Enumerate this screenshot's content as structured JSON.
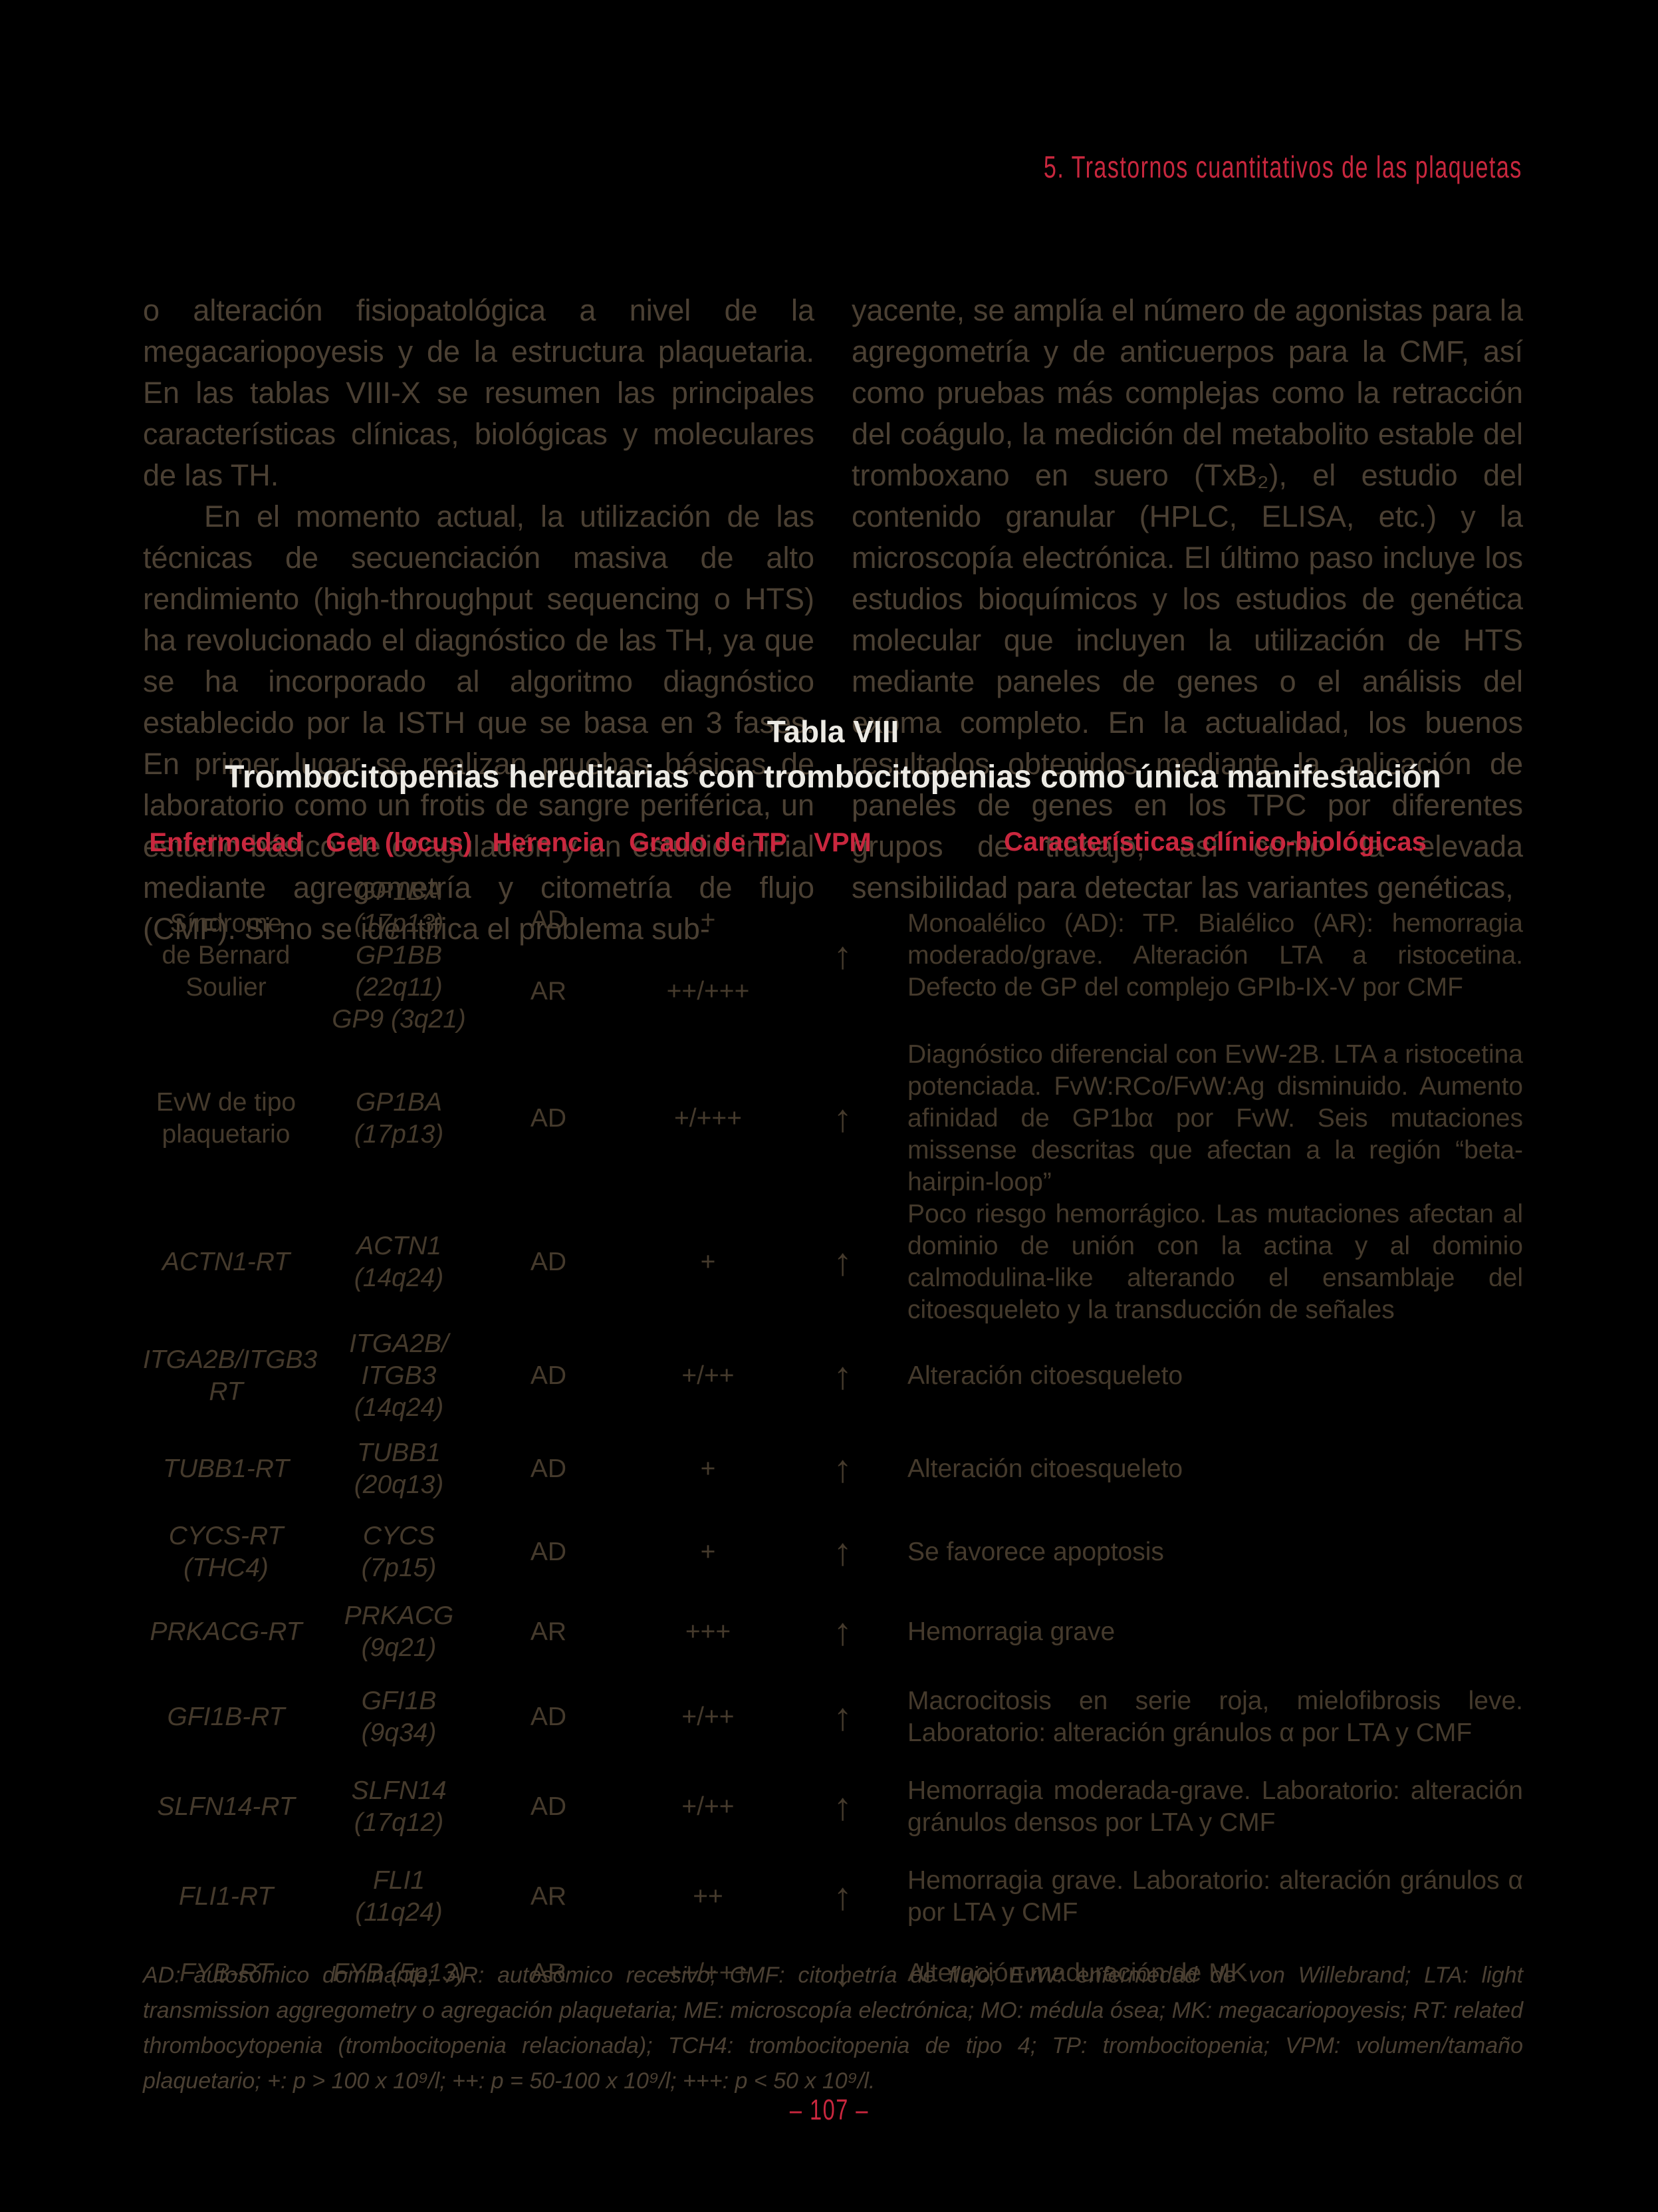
{
  "colors": {
    "background": "#000000",
    "accent_red": "#c9273e",
    "body_text": "#4b4033",
    "table_text": "#453a2c",
    "title_white": "#eceae4"
  },
  "chapter_header": "5. Trastornos cuantitativos de las plaquetas",
  "page_number": "– 107 –",
  "body": {
    "left": {
      "p1": "o alteración fisiopatológica a nivel de la megacariopoyesis y de la estructura plaquetaria. En las tablas VIII-X se resumen las principales características clínicas, biológicas y moleculares de las TH.",
      "p2": "En el momento actual, la utilización de las técnicas de secuenciación masiva de alto rendimiento (high-throughput sequencing o HTS) ha revolucionado el diagnóstico de las TH, ya que se ha incorporado al algoritmo diagnóstico establecido por la ISTH que se basa en 3 fases. En primer lugar se realizan pruebas básicas de laboratorio como un frotis de sangre periférica, un estudio básico de coagulación y un estudio inicial mediante agregometría y citometría de flujo (CMF). Si no se identifica el problema sub-"
    },
    "right": {
      "p1": "yacente, se amplía el número de agonistas para la agregometría y de anticuerpos para la CMF, así como pruebas más complejas como la retracción del coágulo, la medición del metabolito estable del tromboxano en suero (TxB₂), el estudio del contenido granular (HPLC, ELISA, etc.) y la microscopía electrónica. El último paso incluye los estudios bioquímicos y los estudios de genética molecular que incluyen la utilización de HTS mediante paneles de genes o el análisis del exoma completo. En la actualidad, los buenos resultados obtenidos mediante la aplicación de paneles de genes en los TPC por diferentes grupos de trabajo, así como la elevada sensibilidad para detectar las variantes genéticas,"
    }
  },
  "table": {
    "title": "Tabla VIII",
    "subtitle": "Trombocitopenias hereditarias con trombocitopenias como única manifestación",
    "headers": [
      "Enfermedad",
      "Gen (locus)",
      "Herencia",
      "Grado de TP",
      "VPM",
      "Características clínico-biológicas"
    ],
    "rows": [
      {
        "enfermedad": [
          "Síndrome",
          "de Bernard",
          "Soulier"
        ],
        "enfermedad_italic": false,
        "gen": [
          "GP1BA",
          "(17p13)",
          "GP1BB",
          "(22q11)",
          "GP9 (3q21)"
        ],
        "herencia": [
          "AD",
          "AR"
        ],
        "grado": [
          "+",
          "++/+++"
        ],
        "vpm": {
          "icon": "arrow-up",
          "glyph": "↑"
        },
        "caracteristicas": "Monoalélico (AD): TP. Bialélico (AR): hemorragia moderado/grave. Alteración LTA a ristocetina. Defecto de GP del complejo GPIb-IX-V por CMF"
      },
      {
        "enfermedad": [
          "EvW de tipo",
          "plaquetario"
        ],
        "enfermedad_italic": false,
        "gen": [
          "GP1BA",
          "(17p13)"
        ],
        "herencia": [
          "AD"
        ],
        "grado": [
          "+/+++"
        ],
        "vpm": {
          "icon": "arrow-up",
          "glyph": "↑"
        },
        "caracteristicas": "Diagnóstico diferencial con EvW-2B. LTA a ristocetina potenciada. FvW:RCo/FvW:Ag disminuido. Aumento afinidad de GP1bα por FvW. Seis mutaciones missense descritas que afectan a la región “beta-hairpin-loop”"
      },
      {
        "enfermedad": [
          "ACTN1-RT"
        ],
        "enfermedad_italic": true,
        "gen": [
          "ACTN1",
          "(14q24)"
        ],
        "herencia": [
          "AD"
        ],
        "grado": [
          "+"
        ],
        "vpm": {
          "icon": "arrow-up",
          "glyph": "↑"
        },
        "caracteristicas": "Poco riesgo hemorrágico. Las mutaciones afectan al dominio de unión con la actina y al dominio calmodulina-like alterando el ensamblaje del citoesqueleto y la transducción de señales"
      },
      {
        "enfermedad": [
          "ITGA2B/ITGB3",
          "RT"
        ],
        "enfermedad_italic": true,
        "gen": [
          "ITGA2B/",
          "ITGB3",
          "(14q24)"
        ],
        "herencia": [
          "AD"
        ],
        "grado": [
          "+/++"
        ],
        "vpm": {
          "icon": "arrow-up",
          "glyph": "↑"
        },
        "caracteristicas": "Alteración citoesqueleto"
      },
      {
        "enfermedad": [
          "TUBB1-RT"
        ],
        "enfermedad_italic": true,
        "gen": [
          "TUBB1",
          "(20q13)"
        ],
        "herencia": [
          "AD"
        ],
        "grado": [
          "+"
        ],
        "vpm": {
          "icon": "arrow-up",
          "glyph": "↑"
        },
        "caracteristicas": "Alteración citoesqueleto"
      },
      {
        "enfermedad": [
          "CYCS-RT",
          "(THC4)"
        ],
        "enfermedad_italic": true,
        "gen": [
          "CYCS",
          "(7p15)"
        ],
        "herencia": [
          "AD"
        ],
        "grado": [
          "+"
        ],
        "vpm": {
          "icon": "arrow-up",
          "glyph": "↑"
        },
        "caracteristicas": "Se favorece apoptosis"
      },
      {
        "enfermedad": [
          "PRKACG-RT"
        ],
        "enfermedad_italic": true,
        "gen": [
          "PRKACG",
          "(9q21)"
        ],
        "herencia": [
          "AR"
        ],
        "grado": [
          "+++"
        ],
        "vpm": {
          "icon": "arrow-up",
          "glyph": "↑"
        },
        "caracteristicas": "Hemorragia grave"
      },
      {
        "enfermedad": [
          "GFI1B-RT"
        ],
        "enfermedad_italic": true,
        "gen": [
          "GFI1B",
          "(9q34)"
        ],
        "herencia": [
          "AD"
        ],
        "grado": [
          "+/++"
        ],
        "vpm": {
          "icon": "arrow-up",
          "glyph": "↑"
        },
        "caracteristicas": "Macrocitosis en serie roja, mielofibrosis leve. Laboratorio: alteración gránulos α por LTA y CMF"
      },
      {
        "enfermedad": [
          "SLFN14-RT"
        ],
        "enfermedad_italic": true,
        "gen": [
          "SLFN14",
          "(17q12)"
        ],
        "herencia": [
          "AD"
        ],
        "grado": [
          "+/++"
        ],
        "vpm": {
          "icon": "arrow-up",
          "glyph": "↑"
        },
        "caracteristicas": "Hemorragia moderada-grave. Laboratorio: alteración gránulos densos por LTA y CMF"
      },
      {
        "enfermedad": [
          "FLI1-RT"
        ],
        "enfermedad_italic": true,
        "gen": [
          "FLI1",
          "(11q24)"
        ],
        "herencia": [
          "AR"
        ],
        "grado": [
          "++"
        ],
        "vpm": {
          "icon": "arrow-up",
          "glyph": "↑"
        },
        "caracteristicas": "Hemorragia grave. Laboratorio: alteración gránulos α por LTA y CMF"
      },
      {
        "enfermedad": [
          "FYB-RT"
        ],
        "enfermedad_italic": true,
        "gen": [
          "FYB (5p13)"
        ],
        "herencia": [
          "AR"
        ],
        "grado": [
          "++/+++"
        ],
        "vpm": {
          "icon": "arrow-down",
          "glyph": "↓"
        },
        "caracteristicas": "Alteración maduración de MK"
      }
    ],
    "footnote": "AD: autosómico dominante; AR: autosómico recesivo; CMF: citometría de flujo; EvW: enfermedad de von Willebrand; LTA: light transmission aggregometry o agregación plaquetaria; ME: microscopía electrónica; MO: médula ósea; MK: megacariopoyesis; RT: related thrombocytopenia (trombocitopenia relacionada); TCH4: trombocitopenia de tipo 4; TP: trombocitopenia; VPM: volumen/tamaño plaquetario; +: p > 100 x 10⁹/l; ++: p = 50-100 x 10⁹/l; +++: p < 50 x 10⁹/l."
  }
}
